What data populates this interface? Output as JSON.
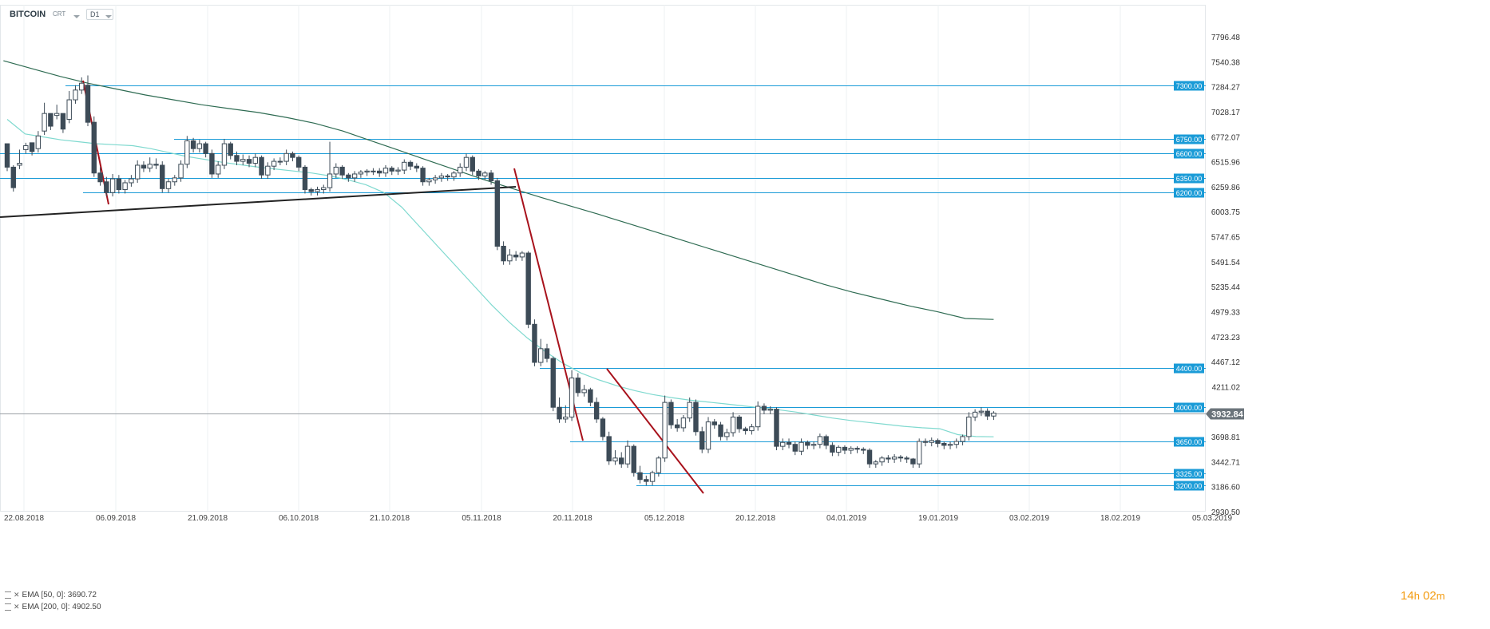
{
  "header": {
    "symbol": "BITCOIN",
    "type": "CRT",
    "timeframe": "D1"
  },
  "legend": [
    {
      "label": "EMA [50, 0]: 3690.72",
      "color": "#7fd9cf"
    },
    {
      "label": "EMA [200, 0]: 4902.50",
      "color": "#2e6b52"
    }
  ],
  "timer": {
    "hours": "14",
    "h_unit": "h",
    "minutes": "02",
    "m_unit": "m"
  },
  "chart_data": {
    "type": "candlestick",
    "y_ticks": [
      "7796.48",
      "7540.38",
      "7284.27",
      "7028.17",
      "6772.07",
      "6515.96",
      "6259.86",
      "6003.75",
      "5747.65",
      "5491.54",
      "5235.44",
      "4979.33",
      "4723.23",
      "4467.12",
      "4211.02",
      "3954.91",
      "3698.81",
      "3442.71",
      "3186.60",
      "2930.50"
    ],
    "x_ticks": [
      "22.08.2018",
      "06.09.2018",
      "21.09.2018",
      "06.10.2018",
      "21.10.2018",
      "05.11.2018",
      "20.11.2018",
      "05.12.2018",
      "20.12.2018",
      "04.01.2019",
      "19.01.2019",
      "03.02.2019",
      "18.02.2019",
      "05.03.2019"
    ],
    "ylim": [
      2930.5,
      7796.48
    ],
    "last_price": 3932.84,
    "levels": [
      7300,
      6750,
      6600,
      6350,
      6200,
      4400,
      4000,
      3650,
      3325,
      3200
    ],
    "colors": {
      "bull": "#ffffff",
      "bear": "#3d4b57",
      "level": "#1a9bd7",
      "label_bg": "#1a9bd7",
      "trend_red": "#a8121c",
      "trend_black": "#222222",
      "ema50": "#7fd9cf",
      "ema200": "#2e6b52",
      "last_bg": "#6b747b"
    },
    "candles": [
      [
        6700,
        6460,
        6550
      ],
      [
        6460,
        6250,
        6480
      ],
      [
        6480,
        6500,
        6640
      ],
      [
        6640,
        6680,
        6710
      ],
      [
        6710,
        6620,
        6650
      ],
      [
        6650,
        6780,
        6830
      ],
      [
        6830,
        7010,
        7120
      ],
      [
        7010,
        6880,
        6990
      ],
      [
        6990,
        7010,
        7100
      ],
      [
        7010,
        6850,
        6950
      ],
      [
        6950,
        7150,
        7240
      ],
      [
        7150,
        7250,
        7300
      ],
      [
        7250,
        7320,
        7380
      ],
      [
        7300,
        6920,
        7400
      ],
      [
        6920,
        6400,
        6980
      ],
      [
        6400,
        6310,
        6460
      ],
      [
        6310,
        6200,
        6360
      ],
      [
        6200,
        6340,
        6390
      ],
      [
        6340,
        6230,
        6380
      ],
      [
        6230,
        6300,
        6330
      ],
      [
        6300,
        6340,
        6380
      ],
      [
        6340,
        6480,
        6530
      ],
      [
        6480,
        6450,
        6520
      ],
      [
        6450,
        6490,
        6560
      ],
      [
        6490,
        6480,
        6550
      ],
      [
        6480,
        6240,
        6520
      ],
      [
        6240,
        6310,
        6340
      ],
      [
        6310,
        6350,
        6380
      ],
      [
        6350,
        6490,
        6530
      ],
      [
        6490,
        6730,
        6780
      ],
      [
        6730,
        6650,
        6760
      ],
      [
        6650,
        6700,
        6740
      ],
      [
        6700,
        6600,
        6720
      ],
      [
        6600,
        6390,
        6640
      ],
      [
        6390,
        6480,
        6520
      ],
      [
        6480,
        6700,
        6750
      ],
      [
        6700,
        6580,
        6720
      ],
      [
        6580,
        6520,
        6620
      ],
      [
        6520,
        6540,
        6590
      ],
      [
        6540,
        6500,
        6580
      ],
      [
        6500,
        6560,
        6600
      ],
      [
        6560,
        6380,
        6580
      ],
      [
        6380,
        6470,
        6510
      ],
      [
        6470,
        6520,
        6550
      ],
      [
        6520,
        6520,
        6560
      ],
      [
        6520,
        6600,
        6640
      ],
      [
        6600,
        6560,
        6620
      ],
      [
        6560,
        6460,
        6580
      ],
      [
        6460,
        6230,
        6480
      ],
      [
        6230,
        6210,
        6250
      ],
      [
        6210,
        6230,
        6260
      ],
      [
        6230,
        6250,
        6280
      ],
      [
        6250,
        6390,
        6720
      ],
      [
        6390,
        6460,
        6500
      ],
      [
        6460,
        6380,
        6480
      ],
      [
        6380,
        6350,
        6400
      ],
      [
        6350,
        6390,
        6420
      ],
      [
        6390,
        6410,
        6430
      ],
      [
        6410,
        6420,
        6440
      ],
      [
        6420,
        6420,
        6450
      ],
      [
        6420,
        6400,
        6450
      ],
      [
        6400,
        6450,
        6480
      ],
      [
        6450,
        6420,
        6470
      ],
      [
        6420,
        6430,
        6460
      ],
      [
        6430,
        6510,
        6540
      ],
      [
        6510,
        6470,
        6530
      ],
      [
        6470,
        6450,
        6500
      ],
      [
        6450,
        6310,
        6470
      ],
      [
        6310,
        6330,
        6350
      ],
      [
        6330,
        6350,
        6380
      ],
      [
        6350,
        6370,
        6400
      ],
      [
        6370,
        6360,
        6390
      ],
      [
        6360,
        6400,
        6420
      ],
      [
        6400,
        6460,
        6500
      ],
      [
        6460,
        6560,
        6600
      ],
      [
        6560,
        6420,
        6580
      ],
      [
        6420,
        6370,
        6440
      ],
      [
        6370,
        6400,
        6420
      ],
      [
        6400,
        6320,
        6430
      ],
      [
        6320,
        5650,
        6350
      ],
      [
        5650,
        5500,
        5700
      ],
      [
        5500,
        5560,
        5620
      ],
      [
        5560,
        5540,
        5600
      ],
      [
        5540,
        5580,
        5600
      ],
      [
        5580,
        4850,
        5600
      ],
      [
        4850,
        4460,
        4900
      ],
      [
        4460,
        4600,
        4700
      ],
      [
        4600,
        4500,
        4650
      ],
      [
        4500,
        4000,
        4520
      ],
      [
        4000,
        3880,
        4100
      ],
      [
        3880,
        3900,
        4020
      ],
      [
        3900,
        4300,
        4380
      ],
      [
        4300,
        4150,
        4350
      ],
      [
        4150,
        4180,
        4230
      ],
      [
        4180,
        4050,
        4200
      ],
      [
        4050,
        3880,
        4100
      ],
      [
        3880,
        3700,
        3900
      ],
      [
        3700,
        3450,
        3750
      ],
      [
        3450,
        3480,
        3560
      ],
      [
        3480,
        3420,
        3540
      ],
      [
        3420,
        3600,
        3660
      ],
      [
        3600,
        3330,
        3620
      ],
      [
        3330,
        3260,
        3400
      ],
      [
        3260,
        3240,
        3300
      ],
      [
        3240,
        3330,
        3350
      ],
      [
        3330,
        3480,
        3500
      ],
      [
        3480,
        4050,
        4120
      ],
      [
        4050,
        3820,
        4080
      ],
      [
        3820,
        3790,
        3880
      ],
      [
        3790,
        3890,
        3920
      ],
      [
        3890,
        4050,
        4100
      ],
      [
        4050,
        3750,
        4080
      ],
      [
        3750,
        3570,
        3800
      ],
      [
        3570,
        3850,
        3900
      ],
      [
        3850,
        3820,
        3880
      ],
      [
        3820,
        3700,
        3850
      ],
      [
        3700,
        3740,
        3780
      ],
      [
        3740,
        3900,
        3950
      ],
      [
        3900,
        3780,
        3920
      ],
      [
        3780,
        3760,
        3800
      ],
      [
        3760,
        3800,
        3830
      ],
      [
        3800,
        4010,
        4060
      ],
      [
        4010,
        3970,
        4040
      ],
      [
        3970,
        3980,
        4010
      ],
      [
        3980,
        3600,
        4000
      ],
      [
        3600,
        3640,
        3680
      ],
      [
        3640,
        3620,
        3680
      ],
      [
        3620,
        3550,
        3650
      ],
      [
        3550,
        3640,
        3680
      ],
      [
        3640,
        3610,
        3660
      ],
      [
        3610,
        3620,
        3650
      ],
      [
        3620,
        3700,
        3730
      ],
      [
        3700,
        3610,
        3720
      ],
      [
        3610,
        3540,
        3640
      ],
      [
        3540,
        3590,
        3610
      ],
      [
        3590,
        3560,
        3610
      ],
      [
        3560,
        3580,
        3600
      ],
      [
        3580,
        3570,
        3600
      ],
      [
        3570,
        3560,
        3590
      ],
      [
        3560,
        3420,
        3580
      ],
      [
        3420,
        3440,
        3460
      ],
      [
        3440,
        3480,
        3500
      ],
      [
        3480,
        3470,
        3510
      ],
      [
        3470,
        3490,
        3520
      ],
      [
        3490,
        3480,
        3510
      ],
      [
        3480,
        3470,
        3500
      ],
      [
        3470,
        3420,
        3480
      ],
      [
        3420,
        3650,
        3680
      ],
      [
        3650,
        3640,
        3680
      ],
      [
        3640,
        3660,
        3690
      ],
      [
        3660,
        3630,
        3680
      ],
      [
        3630,
        3610,
        3650
      ],
      [
        3610,
        3620,
        3650
      ],
      [
        3620,
        3650,
        3680
      ],
      [
        3650,
        3700,
        3720
      ],
      [
        3700,
        3900,
        3950
      ],
      [
        3900,
        3950,
        3980
      ],
      [
        3950,
        3960,
        4000
      ],
      [
        3960,
        3910,
        3990
      ],
      [
        3910,
        3940,
        3960
      ]
    ],
    "ema50": [
      6950,
      6800,
      6770,
      6740,
      6720,
      6700,
      6690,
      6680,
      6650,
      6610,
      6570,
      6540,
      6510,
      6485,
      6460,
      6440,
      6420,
      6400,
      6370,
      6330,
      6280,
      6200,
      6050,
      5850,
      5650,
      5450,
      5250,
      5050,
      4870,
      4710,
      4570,
      4450,
      4350,
      4280,
      4220,
      4170,
      4130,
      4100,
      4075,
      4055,
      4035,
      4015,
      3995,
      3975,
      3950,
      3920,
      3890,
      3865,
      3845,
      3825,
      3805,
      3790,
      3780,
      3720,
      3700,
      3698
    ],
    "ema200": [
      7550,
      7470,
      7390,
      7320,
      7260,
      7200,
      7150,
      7100,
      7060,
      7020,
      6970,
      6910,
      6830,
      6730,
      6630,
      6530,
      6430,
      6330,
      6240,
      6150,
      6065,
      5980,
      5890,
      5800,
      5710,
      5620,
      5530,
      5440,
      5350,
      5260,
      5180,
      5110,
      5040,
      4980,
      4910,
      4900
    ]
  }
}
